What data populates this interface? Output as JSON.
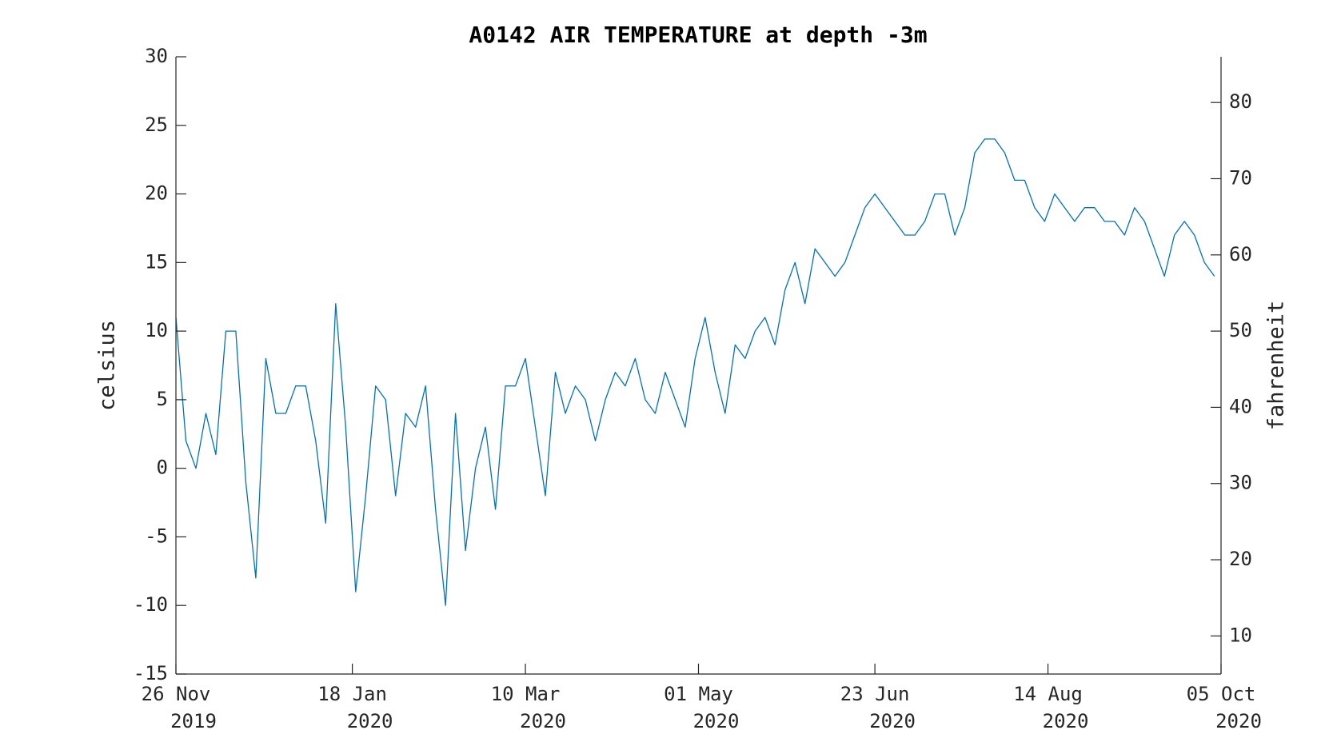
{
  "chart_data": {
    "type": "line",
    "title": "A0142 AIR TEMPERATURE at depth -3m",
    "ylabel": "celsius",
    "y2label": "fahrenheit",
    "xlim": [
      "2019-11-26",
      "2020-10-05"
    ],
    "xticks": [
      {
        "value": "2019-11-26",
        "label": [
          "26 Nov",
          "2019"
        ]
      },
      {
        "value": "2020-01-18",
        "label": [
          "18 Jan",
          "2020"
        ]
      },
      {
        "value": "2020-03-10",
        "label": [
          "10 Mar",
          "2020"
        ]
      },
      {
        "value": "2020-05-01",
        "label": [
          "01 May",
          "2020"
        ]
      },
      {
        "value": "2020-06-23",
        "label": [
          "23 Jun",
          "2020"
        ]
      },
      {
        "value": "2020-08-14",
        "label": [
          "14 Aug",
          "2020"
        ]
      },
      {
        "value": "2020-10-05",
        "label": [
          "05 Oct",
          "2020"
        ]
      }
    ],
    "ylim": [
      -15,
      30
    ],
    "yticks": [
      -15,
      -10,
      -5,
      0,
      5,
      10,
      15,
      20,
      25,
      30
    ],
    "y2lim": [
      5,
      86
    ],
    "y2ticks": [
      10,
      20,
      30,
      40,
      50,
      60,
      70,
      80
    ],
    "x": [
      "2019-11-26",
      "2019-11-29",
      "2019-12-02",
      "2019-12-05",
      "2019-12-08",
      "2019-12-11",
      "2019-12-14",
      "2019-12-17",
      "2019-12-20",
      "2019-12-23",
      "2019-12-26",
      "2019-12-29",
      "2020-01-01",
      "2020-01-04",
      "2020-01-07",
      "2020-01-10",
      "2020-01-13",
      "2020-01-16",
      "2020-01-19",
      "2020-01-22",
      "2020-01-25",
      "2020-01-28",
      "2020-01-31",
      "2020-02-03",
      "2020-02-06",
      "2020-02-09",
      "2020-02-12",
      "2020-02-15",
      "2020-02-18",
      "2020-02-21",
      "2020-02-24",
      "2020-02-27",
      "2020-03-01",
      "2020-03-04",
      "2020-03-07",
      "2020-03-10",
      "2020-03-13",
      "2020-03-16",
      "2020-03-19",
      "2020-03-22",
      "2020-03-25",
      "2020-03-28",
      "2020-03-31",
      "2020-04-03",
      "2020-04-06",
      "2020-04-09",
      "2020-04-12",
      "2020-04-15",
      "2020-04-18",
      "2020-04-21",
      "2020-04-24",
      "2020-04-27",
      "2020-04-30",
      "2020-05-03",
      "2020-05-06",
      "2020-05-09",
      "2020-05-12",
      "2020-05-15",
      "2020-05-18",
      "2020-05-21",
      "2020-05-24",
      "2020-05-27",
      "2020-05-30",
      "2020-06-02",
      "2020-06-05",
      "2020-06-08",
      "2020-06-11",
      "2020-06-14",
      "2020-06-17",
      "2020-06-20",
      "2020-06-23",
      "2020-06-26",
      "2020-06-29",
      "2020-07-02",
      "2020-07-05",
      "2020-07-08",
      "2020-07-11",
      "2020-07-14",
      "2020-07-17",
      "2020-07-20",
      "2020-07-23",
      "2020-07-26",
      "2020-07-29",
      "2020-08-01",
      "2020-08-04",
      "2020-08-07",
      "2020-08-10",
      "2020-08-13",
      "2020-08-16",
      "2020-08-19",
      "2020-08-22",
      "2020-08-25",
      "2020-08-28",
      "2020-08-31",
      "2020-09-03",
      "2020-09-06",
      "2020-09-09",
      "2020-09-12",
      "2020-09-15",
      "2020-09-18",
      "2020-09-21",
      "2020-09-24",
      "2020-09-27",
      "2020-09-30",
      "2020-10-03"
    ],
    "series": [
      {
        "color": "#0072bd",
        "values": [
          11,
          2,
          0,
          4,
          1,
          10,
          10,
          -1,
          -8,
          8,
          4,
          4,
          6,
          6,
          2,
          -4,
          12,
          3,
          -9,
          -2,
          6,
          5,
          -2,
          4,
          3,
          6,
          -3,
          -10,
          4,
          -6,
          0,
          3,
          -3,
          6,
          6,
          8,
          3,
          -2,
          7,
          4,
          6,
          5,
          2,
          5,
          7,
          6,
          8,
          5,
          4,
          7,
          5,
          3,
          8,
          11,
          7,
          4,
          9,
          8,
          10,
          11,
          9,
          13,
          15,
          12,
          16,
          15,
          14,
          15,
          17,
          19,
          20,
          19,
          18,
          17,
          17,
          18,
          20,
          20,
          17,
          19,
          23,
          24,
          24,
          23,
          21,
          21,
          19,
          18,
          20,
          19,
          18,
          19,
          19,
          18,
          18,
          17,
          19,
          18,
          16,
          14,
          17,
          18,
          17,
          15,
          14
        ]
      }
    ]
  }
}
